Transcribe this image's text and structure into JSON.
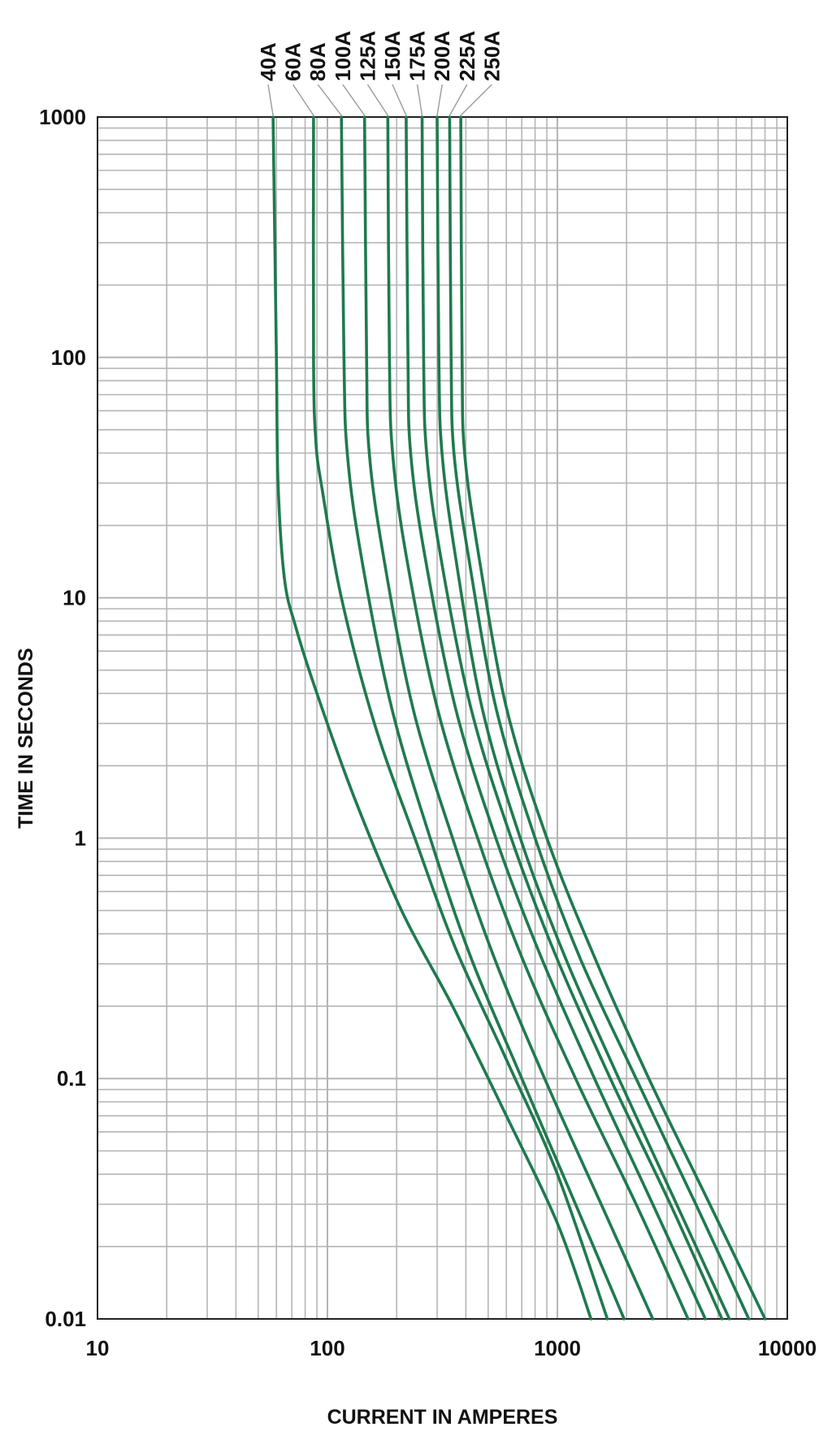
{
  "chart_data": {
    "type": "line",
    "xlabel": "CURRENT IN AMPERES",
    "ylabel": "TIME IN SECONDS",
    "x_scale": "log",
    "y_scale": "log",
    "xlim": [
      10,
      10000
    ],
    "ylim": [
      0.01,
      1000
    ],
    "grid": true,
    "x_tick_labels": [
      "10",
      "100",
      "1000",
      "10000"
    ],
    "y_tick_labels": [
      "0.01",
      "0.1",
      "1",
      "10",
      "100",
      "1000"
    ],
    "legend_placement": "top (labels above each curve)",
    "line_color": "#1f7a4d",
    "series": [
      {
        "name": "40A",
        "points": [
          [
            58,
            1000
          ],
          [
            60,
            100
          ],
          [
            61,
            30
          ],
          [
            65,
            12
          ],
          [
            73,
            7.5
          ],
          [
            90,
            4
          ],
          [
            130,
            1.5
          ],
          [
            210,
            0.5
          ],
          [
            350,
            0.2
          ],
          [
            600,
            0.07
          ],
          [
            1000,
            0.025
          ],
          [
            1400,
            0.01
          ]
        ]
      },
      {
        "name": "60A",
        "points": [
          [
            87,
            1000
          ],
          [
            87,
            100
          ],
          [
            89,
            45
          ],
          [
            95,
            28
          ],
          [
            115,
            10
          ],
          [
            160,
            3
          ],
          [
            240,
            1
          ],
          [
            360,
            0.35
          ],
          [
            600,
            0.12
          ],
          [
            1000,
            0.04
          ],
          [
            1650,
            0.01
          ]
        ]
      },
      {
        "name": "80A",
        "points": [
          [
            115,
            1000
          ],
          [
            118,
            100
          ],
          [
            122,
            40
          ],
          [
            140,
            15
          ],
          [
            190,
            3.5
          ],
          [
            280,
            1.0
          ],
          [
            420,
            0.32
          ],
          [
            700,
            0.1
          ],
          [
            1200,
            0.03
          ],
          [
            1950,
            0.01
          ]
        ]
      },
      {
        "name": "100A",
        "points": [
          [
            145,
            1000
          ],
          [
            148,
            100
          ],
          [
            152,
            40
          ],
          [
            175,
            15
          ],
          [
            235,
            3.5
          ],
          [
            350,
            1.0
          ],
          [
            530,
            0.32
          ],
          [
            880,
            0.1
          ],
          [
            1550,
            0.03
          ],
          [
            2600,
            0.01
          ]
        ]
      },
      {
        "name": "125A",
        "points": [
          [
            183,
            1000
          ],
          [
            186,
            100
          ],
          [
            192,
            40
          ],
          [
            220,
            15
          ],
          [
            300,
            3.5
          ],
          [
            450,
            1.0
          ],
          [
            700,
            0.32
          ],
          [
            1200,
            0.1
          ],
          [
            2200,
            0.03
          ],
          [
            3700,
            0.01
          ]
        ]
      },
      {
        "name": "150A",
        "points": [
          [
            220,
            1000
          ],
          [
            224,
            100
          ],
          [
            230,
            40
          ],
          [
            265,
            15
          ],
          [
            360,
            3.5
          ],
          [
            540,
            1.0
          ],
          [
            850,
            0.32
          ],
          [
            1450,
            0.1
          ],
          [
            2600,
            0.03
          ],
          [
            4400,
            0.01
          ]
        ]
      },
      {
        "name": "175A",
        "points": [
          [
            258,
            1000
          ],
          [
            262,
            100
          ],
          [
            270,
            40
          ],
          [
            310,
            15
          ],
          [
            420,
            3.5
          ],
          [
            630,
            1.0
          ],
          [
            990,
            0.32
          ],
          [
            1700,
            0.1
          ],
          [
            3100,
            0.03
          ],
          [
            5200,
            0.01
          ]
        ]
      },
      {
        "name": "200A",
        "points": [
          [
            300,
            1000
          ],
          [
            305,
            100
          ],
          [
            315,
            40
          ],
          [
            360,
            15
          ],
          [
            470,
            3.5
          ],
          [
            690,
            1.0
          ],
          [
            1080,
            0.32
          ],
          [
            1850,
            0.1
          ],
          [
            3300,
            0.03
          ],
          [
            5600,
            0.01
          ]
        ]
      },
      {
        "name": "225A",
        "points": [
          [
            340,
            1000
          ],
          [
            345,
            100
          ],
          [
            355,
            40
          ],
          [
            410,
            15
          ],
          [
            540,
            3.5
          ],
          [
            800,
            1.0
          ],
          [
            1250,
            0.32
          ],
          [
            2200,
            0.1
          ],
          [
            4000,
            0.03
          ],
          [
            6800,
            0.01
          ]
        ]
      },
      {
        "name": "250A",
        "points": [
          [
            380,
            1000
          ],
          [
            385,
            100
          ],
          [
            395,
            40
          ],
          [
            455,
            15
          ],
          [
            600,
            3.5
          ],
          [
            900,
            1.0
          ],
          [
            1450,
            0.32
          ],
          [
            2500,
            0.1
          ],
          [
            4600,
            0.03
          ],
          [
            8000,
            0.01
          ]
        ]
      }
    ]
  }
}
